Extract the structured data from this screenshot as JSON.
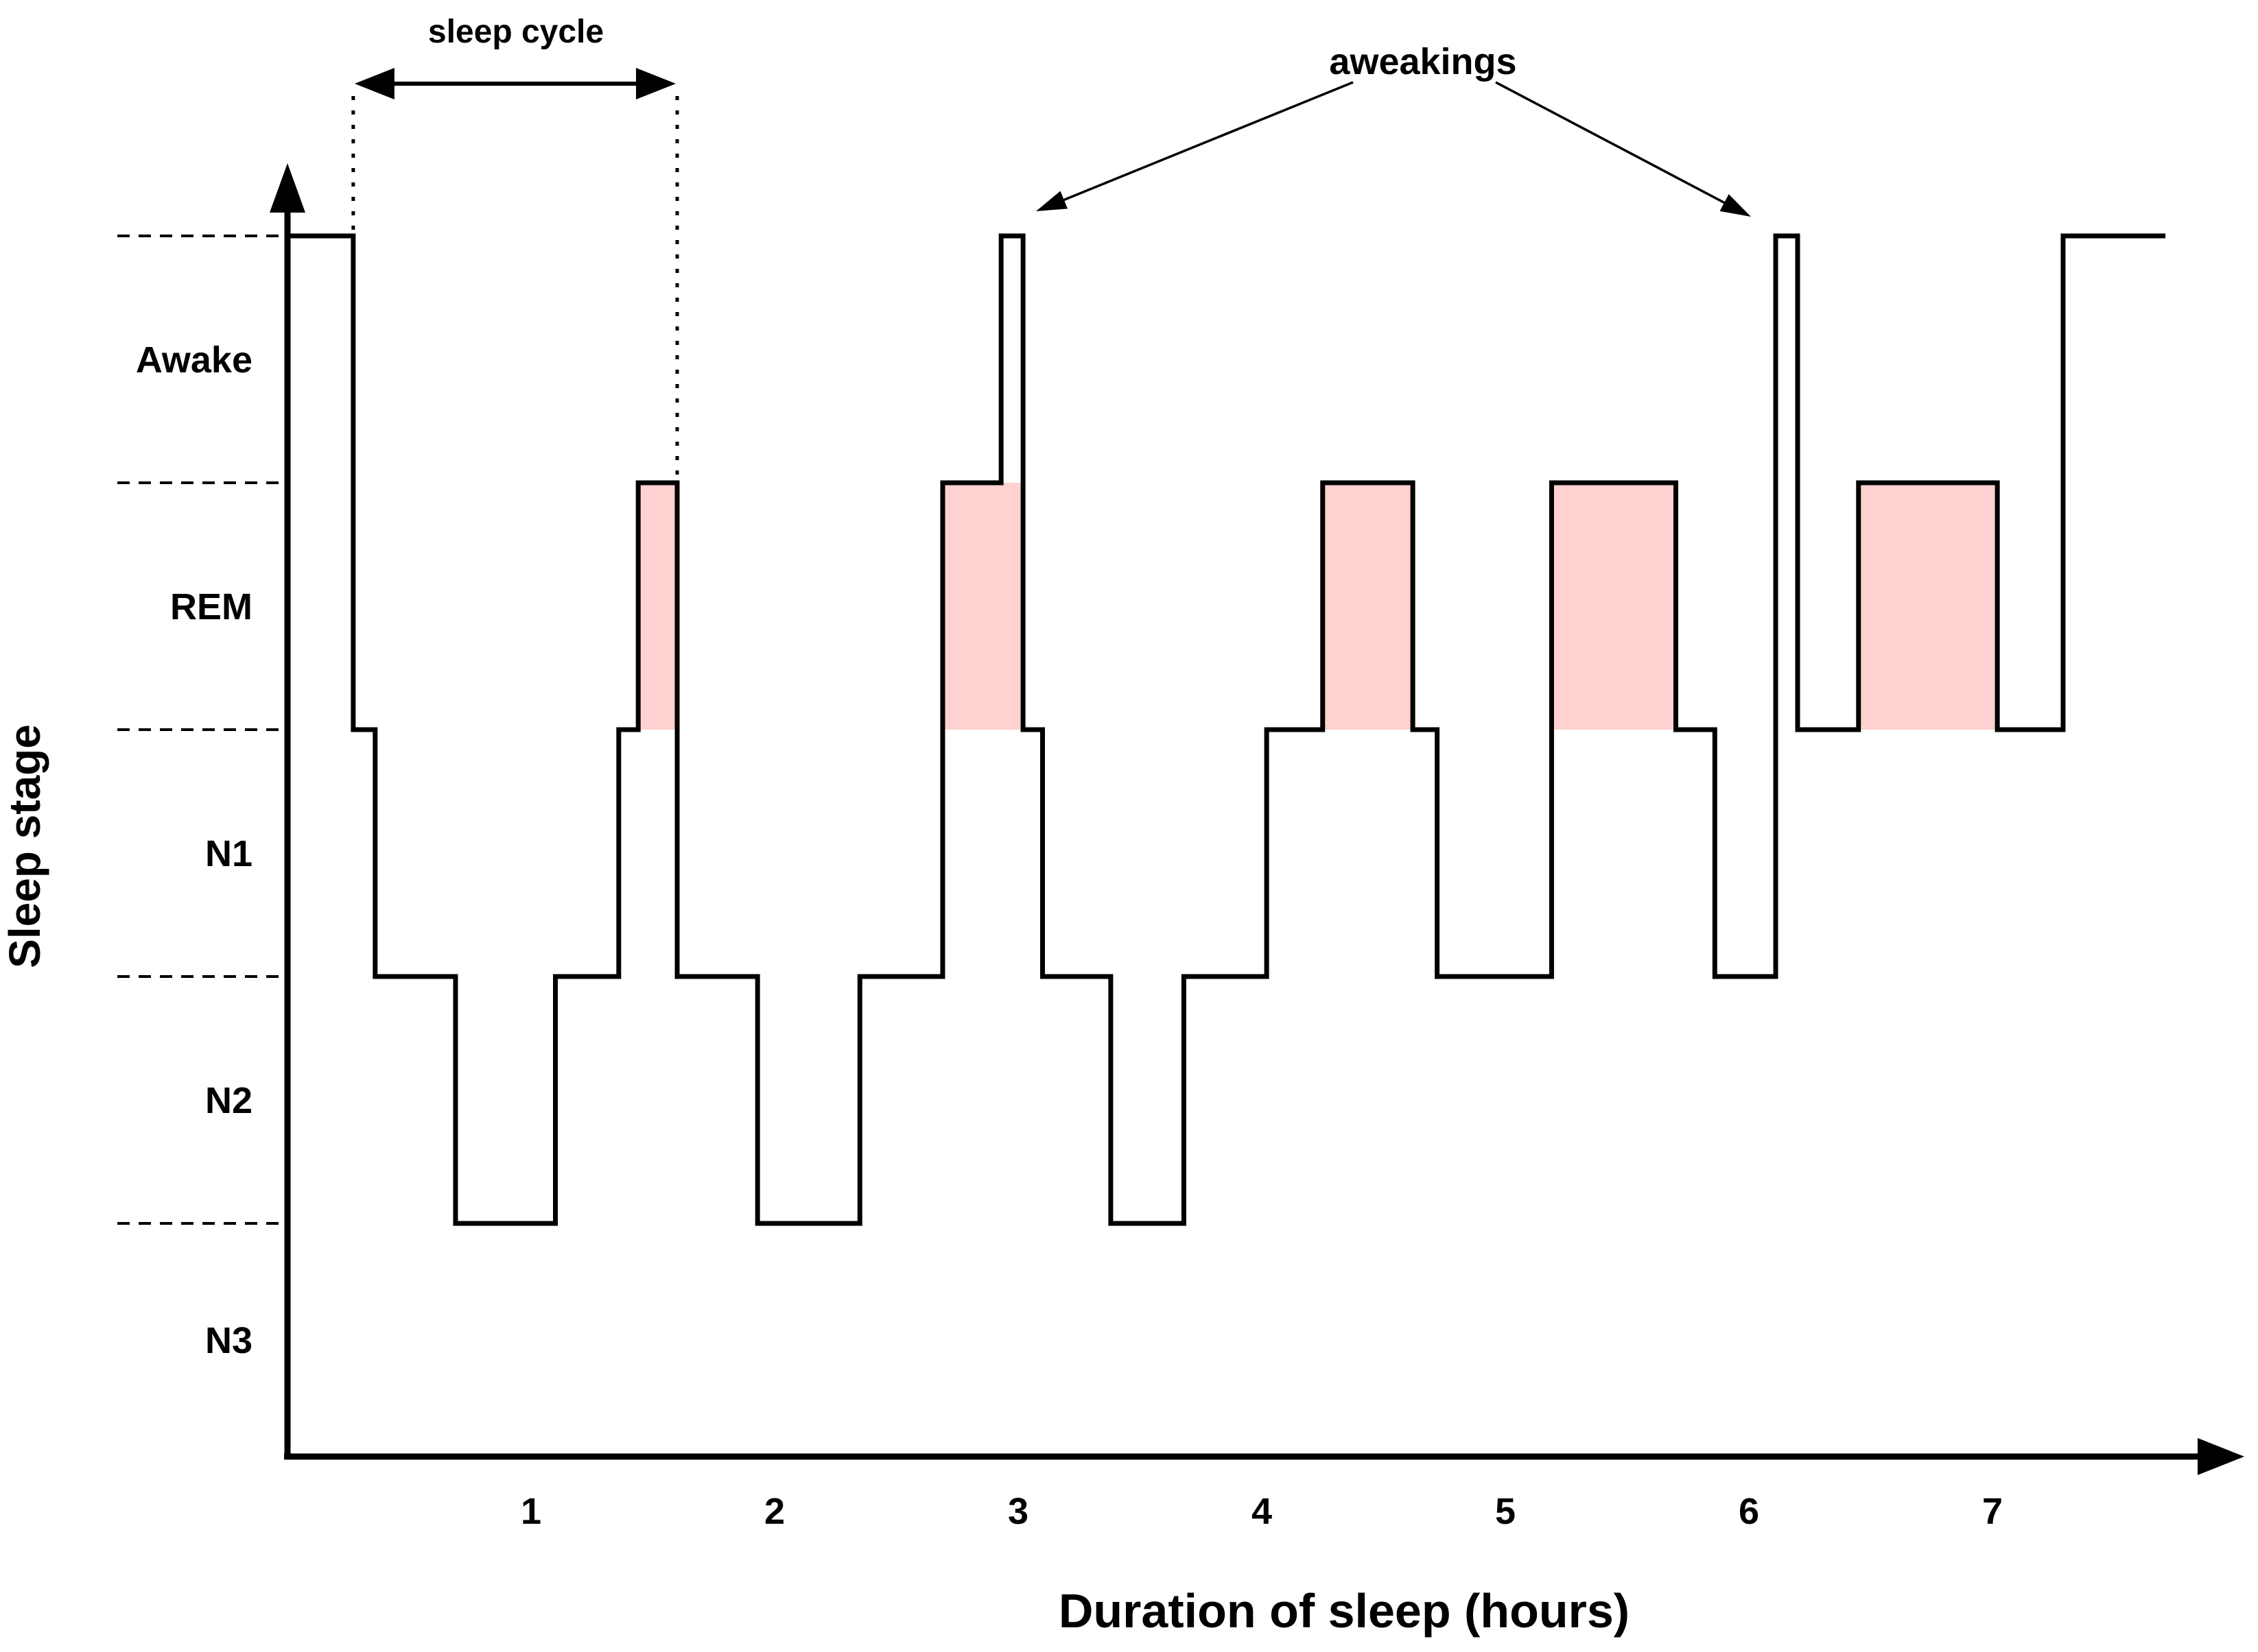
{
  "chart_data": {
    "type": "step",
    "xlabel": "Duration of sleep (hours)",
    "ylabel": "Sleep stage",
    "stages": [
      "Awake",
      "REM",
      "N1",
      "N2",
      "N3"
    ],
    "x_ticks": [
      "1",
      "2",
      "3",
      "4",
      "5",
      "6",
      "7"
    ],
    "xlim_hours": [
      0,
      8
    ],
    "grid": "horizontal dashed stage guides on left of axis",
    "legend_position": "none",
    "colors": {
      "line": "#000000",
      "rem_fill": "#ffd1d0",
      "text": "#000000",
      "background": "#ffffff"
    },
    "segments": [
      {
        "stage": "Awake",
        "from": 0,
        "to": 0.27
      },
      {
        "stage": "N1",
        "from": 0.27,
        "to": 0.36
      },
      {
        "stage": "N2",
        "from": 0.36,
        "to": 0.69
      },
      {
        "stage": "N3",
        "from": 0.69,
        "to": 1.1
      },
      {
        "stage": "N2",
        "from": 1.1,
        "to": 1.36
      },
      {
        "stage": "N1",
        "from": 1.36,
        "to": 1.44
      },
      {
        "stage": "REM",
        "from": 1.44,
        "to": 1.6
      },
      {
        "stage": "N2",
        "from": 1.6,
        "to": 1.93
      },
      {
        "stage": "N3",
        "from": 1.93,
        "to": 2.35
      },
      {
        "stage": "N2",
        "from": 2.35,
        "to": 2.69
      },
      {
        "stage": "REM",
        "from": 2.69,
        "to": 2.93
      },
      {
        "stage": "Awake",
        "from": 2.93,
        "to": 3.02
      },
      {
        "stage": "N1",
        "from": 3.02,
        "to": 3.1
      },
      {
        "stage": "N2",
        "from": 3.1,
        "to": 3.38
      },
      {
        "stage": "N3",
        "from": 3.38,
        "to": 3.68
      },
      {
        "stage": "N2",
        "from": 3.68,
        "to": 4.02
      },
      {
        "stage": "N1",
        "from": 4.02,
        "to": 4.25
      },
      {
        "stage": "REM",
        "from": 4.25,
        "to": 4.62
      },
      {
        "stage": "N1",
        "from": 4.62,
        "to": 4.72
      },
      {
        "stage": "N2",
        "from": 4.72,
        "to": 5.19
      },
      {
        "stage": "REM",
        "from": 5.19,
        "to": 5.7
      },
      {
        "stage": "N1",
        "from": 5.7,
        "to": 5.86
      },
      {
        "stage": "N2",
        "from": 5.86,
        "to": 6.11
      },
      {
        "stage": "Awake",
        "from": 6.11,
        "to": 6.2
      },
      {
        "stage": "N1",
        "from": 6.2,
        "to": 6.45
      },
      {
        "stage": "REM",
        "from": 6.45,
        "to": 7.02
      },
      {
        "stage": "N1",
        "from": 7.02,
        "to": 7.29
      },
      {
        "stage": "Awake",
        "from": 7.29,
        "to": 7.71
      }
    ],
    "rem_episodes_hours": [
      [
        1.44,
        1.6
      ],
      [
        2.69,
        3.02
      ],
      [
        4.25,
        4.62
      ],
      [
        5.19,
        5.7
      ],
      [
        6.45,
        7.02
      ]
    ],
    "awakening_times_hours": [
      2.97,
      6.15
    ],
    "annotations": {
      "sleep_cycle": {
        "label": "sleep cycle",
        "from_hour": 0.27,
        "to_hour": 1.6
      },
      "awakenings": {
        "label": "aweakings"
      }
    }
  }
}
